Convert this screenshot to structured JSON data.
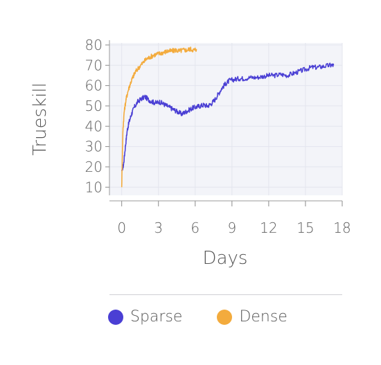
{
  "colors": {
    "sparse": "#4a3fd4",
    "dense": "#f3ab3d",
    "plot_bg": "#f3f4f9",
    "grid": "#e3e5ee"
  },
  "chart_data": {
    "type": "line",
    "xlabel": "Days",
    "ylabel": "Trueskill",
    "xlim": [
      -1,
      18
    ],
    "ylim": [
      6,
      81
    ],
    "xticks": [
      0,
      3,
      6,
      9,
      12,
      15,
      18
    ],
    "yticks": [
      10,
      20,
      30,
      40,
      50,
      60,
      70,
      80
    ],
    "grid": true,
    "legend_position": "bottom",
    "series": [
      {
        "name": "Sparse",
        "color": "#4a3fd4",
        "points": [
          [
            0.0,
            18
          ],
          [
            0.15,
            21
          ],
          [
            0.3,
            30
          ],
          [
            0.45,
            38
          ],
          [
            0.6,
            42
          ],
          [
            0.8,
            46
          ],
          [
            1.0,
            49
          ],
          [
            1.3,
            52
          ],
          [
            1.6,
            53.5
          ],
          [
            1.9,
            54.5
          ],
          [
            2.2,
            53
          ],
          [
            2.5,
            52
          ],
          [
            2.8,
            51.5
          ],
          [
            3.1,
            52
          ],
          [
            3.4,
            51
          ],
          [
            3.7,
            50
          ],
          [
            4.0,
            49
          ],
          [
            4.3,
            48
          ],
          [
            4.6,
            47
          ],
          [
            4.9,
            46
          ],
          [
            5.2,
            47
          ],
          [
            5.5,
            48
          ],
          [
            5.8,
            49
          ],
          [
            6.1,
            49.5
          ],
          [
            6.4,
            50
          ],
          [
            6.7,
            50.5
          ],
          [
            7.0,
            50
          ],
          [
            7.3,
            51
          ],
          [
            7.6,
            53
          ],
          [
            7.9,
            56
          ],
          [
            8.2,
            59
          ],
          [
            8.5,
            61
          ],
          [
            8.8,
            62.5
          ],
          [
            9.2,
            63
          ],
          [
            9.6,
            63.5
          ],
          [
            10.0,
            63.5
          ],
          [
            10.5,
            64
          ],
          [
            11.0,
            64
          ],
          [
            11.5,
            64.5
          ],
          [
            12.0,
            65
          ],
          [
            12.5,
            65
          ],
          [
            13.0,
            65.5
          ],
          [
            13.5,
            65
          ],
          [
            14.0,
            66
          ],
          [
            14.5,
            67
          ],
          [
            15.0,
            68
          ],
          [
            15.5,
            69
          ],
          [
            16.0,
            69
          ],
          [
            16.5,
            69.5
          ],
          [
            17.0,
            70
          ],
          [
            17.3,
            70
          ]
        ]
      },
      {
        "name": "Dense",
        "color": "#f3ab3d",
        "points": [
          [
            0.0,
            10
          ],
          [
            0.05,
            25
          ],
          [
            0.1,
            38
          ],
          [
            0.2,
            47
          ],
          [
            0.35,
            53
          ],
          [
            0.5,
            57
          ],
          [
            0.7,
            61
          ],
          [
            0.9,
            64
          ],
          [
            1.1,
            66.5
          ],
          [
            1.4,
            69
          ],
          [
            1.7,
            71
          ],
          [
            2.0,
            73
          ],
          [
            2.3,
            74
          ],
          [
            2.6,
            75
          ],
          [
            2.9,
            75.5
          ],
          [
            3.2,
            76
          ],
          [
            3.5,
            76.5
          ],
          [
            3.8,
            77
          ],
          [
            4.1,
            77
          ],
          [
            4.4,
            77.5
          ],
          [
            4.7,
            77
          ],
          [
            5.0,
            77.5
          ],
          [
            5.3,
            77.5
          ],
          [
            5.6,
            78
          ],
          [
            5.9,
            77.5
          ],
          [
            6.1,
            78
          ]
        ]
      }
    ]
  }
}
